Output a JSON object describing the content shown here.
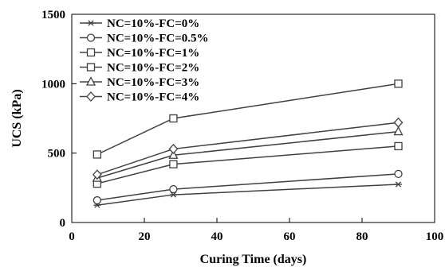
{
  "chart_data": {
    "type": "line",
    "title": "",
    "xlabel": "Curing Time (days)",
    "ylabel": "UCS (kPa)",
    "xlim": [
      0,
      100
    ],
    "ylim": [
      0,
      1500
    ],
    "xticks": [
      0,
      20,
      40,
      60,
      80,
      100
    ],
    "yticks": [
      0,
      500,
      1000,
      1500
    ],
    "grid": false,
    "legend_position": "top-left",
    "line_color": "#404040",
    "series": [
      {
        "name": "NC=10%-FC=0%",
        "marker": "asterisk",
        "x": [
          7,
          28,
          90
        ],
        "y": [
          125,
          200,
          275
        ]
      },
      {
        "name": "NC=10%-FC=0.5%",
        "marker": "circle",
        "x": [
          7,
          28,
          90
        ],
        "y": [
          160,
          240,
          350
        ]
      },
      {
        "name": "NC=10%-FC=1%",
        "marker": "square",
        "x": [
          7,
          28,
          90
        ],
        "y": [
          280,
          420,
          550
        ]
      },
      {
        "name": "NC=10%-FC=2%",
        "marker": "square",
        "x": [
          7,
          28,
          90
        ],
        "y": [
          490,
          750,
          1000
        ]
      },
      {
        "name": "NC=10%-FC=3%",
        "marker": "triangle",
        "x": [
          7,
          28,
          90
        ],
        "y": [
          320,
          485,
          655
        ]
      },
      {
        "name": "NC=10%-FC=4%",
        "marker": "diamond",
        "x": [
          7,
          28,
          90
        ],
        "y": [
          345,
          530,
          720
        ]
      }
    ]
  }
}
